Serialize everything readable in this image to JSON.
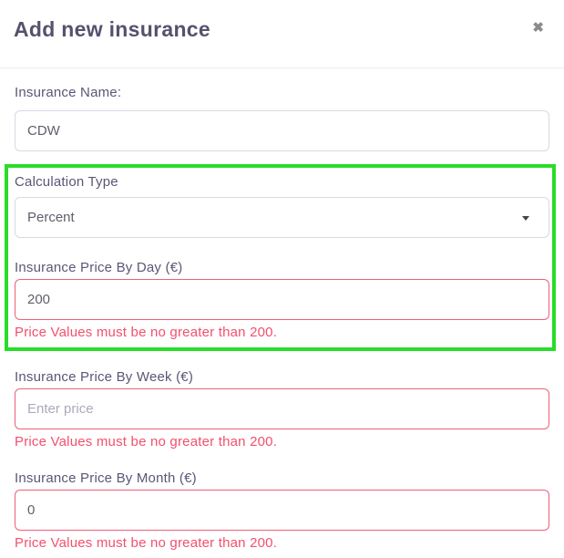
{
  "modal": {
    "title": "Add new insurance",
    "close_glyph": "✖"
  },
  "form": {
    "insurance_name": {
      "label": "Insurance Name:",
      "value": "CDW"
    },
    "calculation_type": {
      "label": "Calculation Type",
      "selected_value": "Percent"
    },
    "price_day": {
      "label": "Insurance Price By Day (€)",
      "value": "200",
      "error": "Price Values must be no greater than 200."
    },
    "price_week": {
      "label": "Insurance Price By Week (€)",
      "placeholder": "Enter price",
      "error": "Price Values must be no greater than 200."
    },
    "price_month": {
      "label": "Insurance Price By Month (€)",
      "value": "0",
      "error": "Price Values must be no greater than 200."
    }
  },
  "annotation": {
    "highlight_color": "#29dd29"
  },
  "colors": {
    "title_text": "#56516e",
    "label_text": "#5b5675",
    "input_border": "#d6dae2",
    "invalid_border": "#ef5f78",
    "error_text": "#f3506c"
  }
}
